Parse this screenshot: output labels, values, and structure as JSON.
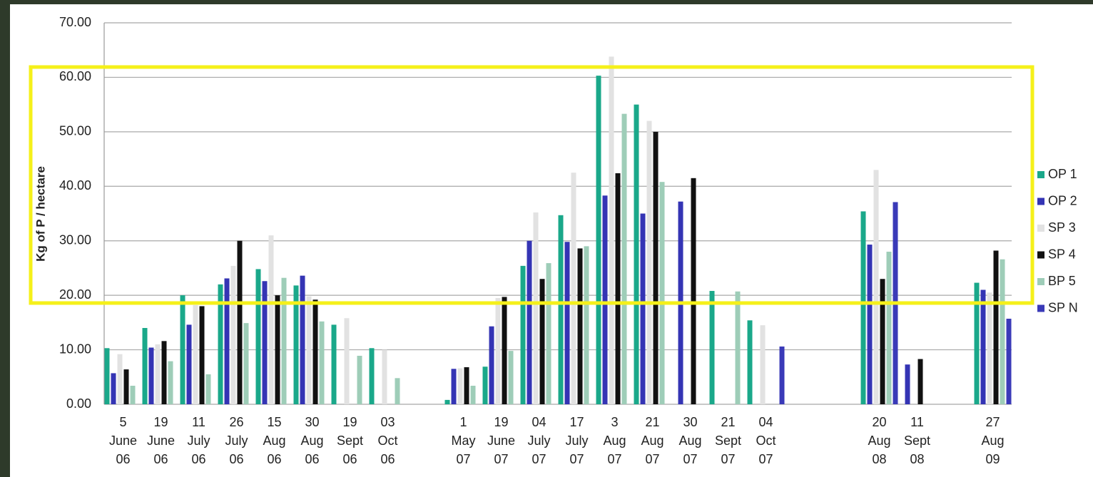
{
  "chart_data": {
    "type": "bar",
    "y_label": "Kg of P / hectare",
    "categories": [
      "5 June 06",
      "19 June 06",
      "11 July 06",
      "26 July 06",
      "15 Aug 06",
      "30 Aug 06",
      "19 Sept 06",
      "03 Oct 06",
      null,
      "1 May 07",
      "19 June 07",
      "04 July 07",
      "17 July 07",
      "3 Aug 07",
      "21 Aug 07",
      "30 Aug 07",
      "21 Sept 07",
      "04 Oct 07",
      null,
      null,
      "20 Aug 08",
      "11 Sept 08",
      null,
      "27 Aug 09"
    ],
    "series": [
      {
        "name": "OP 1",
        "color": "#1aa88a",
        "values": [
          10.3,
          14,
          20,
          22,
          24.8,
          21.8,
          14.6,
          10.3,
          null,
          0.8,
          6.9,
          25.4,
          34.7,
          60.3,
          55,
          null,
          20.8,
          15.4,
          null,
          null,
          35.4,
          null,
          null,
          22.3
        ]
      },
      {
        "name": "OP 2",
        "color": "#3434b4",
        "values": [
          5.7,
          10.4,
          14.6,
          23.1,
          22.6,
          23.6,
          null,
          null,
          null,
          6.5,
          14.3,
          30,
          29.8,
          38.3,
          35,
          37.2,
          null,
          null,
          null,
          null,
          29.3,
          7.3,
          null,
          21
        ]
      },
      {
        "name": "SP 3",
        "color": "#e2e2e2",
        "values": [
          9.2,
          11,
          18.2,
          25.4,
          31,
          19.8,
          15.8,
          10,
          null,
          6.6,
          19.5,
          35.2,
          42.5,
          63.8,
          52,
          null,
          null,
          14.5,
          null,
          null,
          43,
          null,
          null,
          20.5
        ]
      },
      {
        "name": "SP 4",
        "color": "#111111",
        "values": [
          6.4,
          11.6,
          18,
          30,
          20,
          19.2,
          null,
          null,
          null,
          6.8,
          19.7,
          23,
          28.6,
          42.4,
          50,
          41.5,
          null,
          null,
          null,
          null,
          23,
          8.3,
          null,
          28.2
        ]
      },
      {
        "name": "BP 5",
        "color": "#9ecdb8",
        "values": [
          3.4,
          7.9,
          5.5,
          14.9,
          23.2,
          15.2,
          8.9,
          4.8,
          null,
          3.4,
          9.8,
          25.9,
          29,
          53.3,
          40.8,
          null,
          20.7,
          null,
          null,
          null,
          28,
          null,
          null,
          26.6
        ]
      },
      {
        "name": "SP N",
        "color": "#3a3ab8",
        "values": [
          null,
          null,
          null,
          null,
          null,
          null,
          null,
          null,
          null,
          null,
          null,
          null,
          null,
          null,
          null,
          null,
          null,
          10.6,
          null,
          null,
          37.1,
          null,
          null,
          15.7
        ]
      }
    ],
    "ylim": [
      0,
      70
    ],
    "yticks": [
      {
        "value": 0,
        "label": "0.00"
      },
      {
        "value": 10,
        "label": "10.00"
      },
      {
        "value": 20,
        "label": "20.00"
      },
      {
        "value": 30,
        "label": "30.00"
      },
      {
        "value": 40,
        "label": "40.00"
      },
      {
        "value": 50,
        "label": "50.00"
      },
      {
        "value": 60,
        "label": "60.00"
      },
      {
        "value": 70,
        "label": "70.00"
      }
    ],
    "grid": true,
    "legend": "right"
  }
}
